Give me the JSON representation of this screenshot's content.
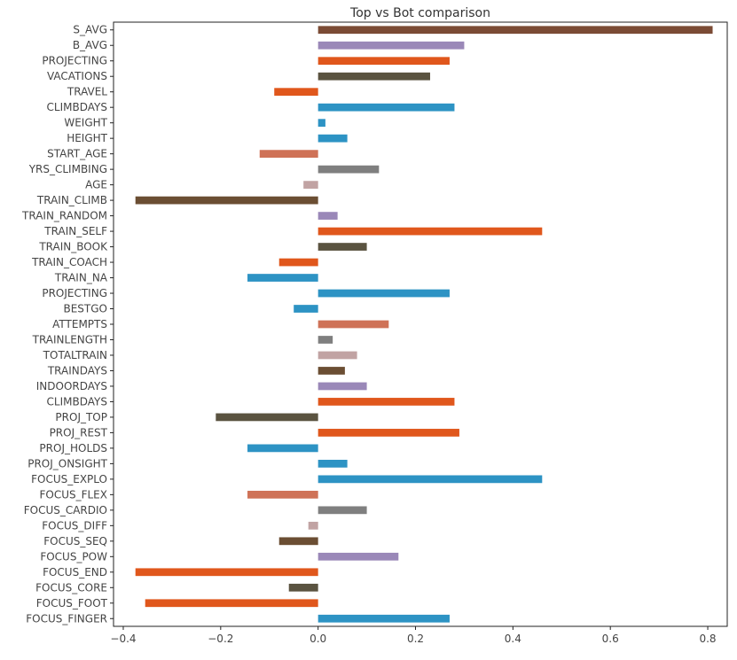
{
  "chart_data": {
    "type": "bar",
    "orientation": "horizontal",
    "title": "Top vs Bot comparison",
    "xlabel": "",
    "ylabel": "",
    "xlim": [
      -0.42,
      0.84
    ],
    "xticks": [
      -0.4,
      -0.2,
      0.0,
      0.2,
      0.4,
      0.6,
      0.8
    ],
    "xtick_labels": [
      "−0.4",
      "−0.2",
      "0.0",
      "0.2",
      "0.4",
      "0.6",
      "0.8"
    ],
    "grid": false,
    "legend": "none",
    "categories": [
      "S_AVG",
      "B_AVG",
      "PROJECTING",
      "VACATIONS",
      "TRAVEL",
      "CLIMBDAYS",
      "WEIGHT",
      "HEIGHT",
      "START_AGE",
      "YRS_CLIMBING",
      "AGE",
      "TRAIN_CLIMB",
      "TRAIN_RANDOM",
      "TRAIN_SELF",
      "TRAIN_BOOK",
      "TRAIN_COACH",
      "TRAIN_NA",
      "PROJECTING",
      "BESTGO",
      "ATTEMPTS",
      "TRAINLENGTH",
      "TOTALTRAIN",
      "TRAINDAYS",
      "INDOORDAYS",
      "CLIMBDAYS",
      "PROJ_TOP",
      "PROJ_REST",
      "PROJ_HOLDS",
      "PROJ_ONSIGHT",
      "FOCUS_EXPLO",
      "FOCUS_FLEX",
      "FOCUS_CARDIO",
      "FOCUS_DIFF",
      "FOCUS_SEQ",
      "FOCUS_POW",
      "FOCUS_END",
      "FOCUS_CORE",
      "FOCUS_FOOT",
      "FOCUS_FINGER"
    ],
    "values": [
      0.81,
      0.3,
      0.27,
      0.23,
      -0.09,
      0.28,
      0.015,
      0.06,
      -0.12,
      0.125,
      -0.03,
      -0.375,
      0.04,
      0.46,
      0.1,
      -0.08,
      -0.145,
      0.27,
      -0.05,
      0.145,
      0.03,
      0.08,
      0.055,
      0.1,
      0.28,
      -0.21,
      0.29,
      -0.145,
      0.06,
      0.46,
      -0.145,
      0.1,
      -0.02,
      -0.08,
      0.165,
      -0.375,
      -0.06,
      -0.355,
      0.27
    ],
    "colors": [
      "#7b4b35",
      "#9a88b8",
      "#e0571c",
      "#5a5340",
      "#e0571c",
      "#2d93c4",
      "#2d93c4",
      "#2d93c4",
      "#cf7257",
      "#7f7f7f",
      "#c1a3a3",
      "#6b4e33",
      "#9a88b8",
      "#e0571c",
      "#5a5340",
      "#e0571c",
      "#2d93c4",
      "#2d93c4",
      "#2d93c4",
      "#cf7257",
      "#7f7f7f",
      "#c1a3a3",
      "#6b4e33",
      "#9a88b8",
      "#e0571c",
      "#5a5340",
      "#e0571c",
      "#2d93c4",
      "#2d93c4",
      "#2d93c4",
      "#cf7257",
      "#7f7f7f",
      "#c1a3a3",
      "#6b4e33",
      "#9a88b8",
      "#e0571c",
      "#5a5340",
      "#e0571c",
      "#2d93c4"
    ]
  }
}
